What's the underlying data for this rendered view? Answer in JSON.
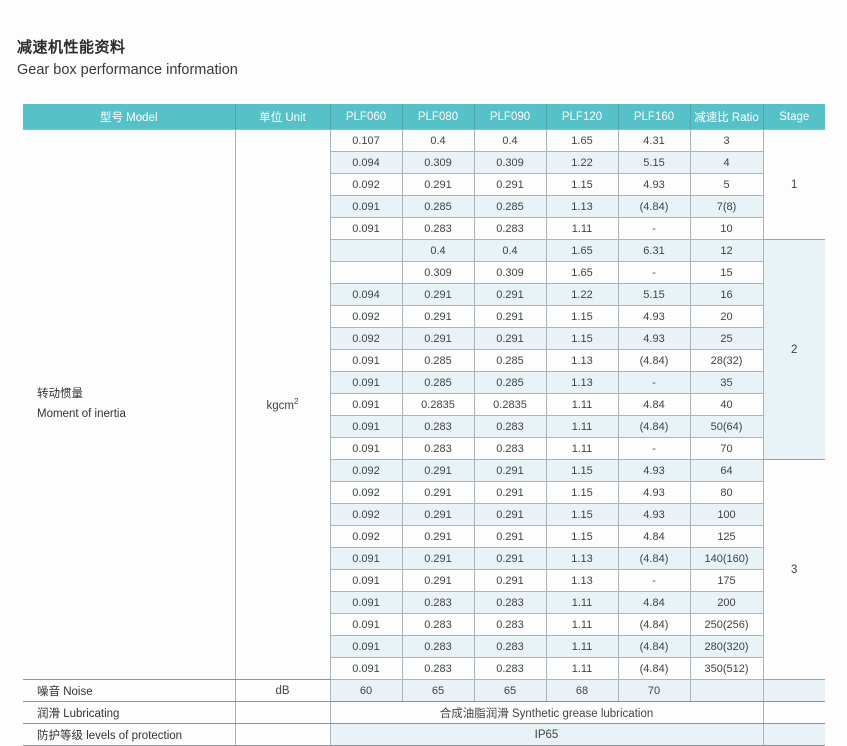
{
  "page": {
    "title_zh": "减速机性能资料",
    "title_en": "Gear box performance information"
  },
  "colors": {
    "header_bg": "#57c1c8",
    "header_text": "#ffffff",
    "stripe": "#e9f2f6",
    "border_light": "#aab4b9",
    "border_dark": "#8d9499"
  },
  "table": {
    "headers": [
      "型号 Model",
      "单位 Unit",
      "PLF060",
      "PLF080",
      "PLF090",
      "PLF120",
      "PLF160",
      "减速比 Ratio",
      "Stage"
    ],
    "row_label": {
      "zh": "转动惯量",
      "en": "Moment of inertia"
    },
    "unit": {
      "base": "kgcm",
      "sup": "2"
    },
    "stages": [
      {
        "stage": "1",
        "rows": [
          [
            "0.107",
            "0.4",
            "0.4",
            "1.65",
            "4.31",
            "3"
          ],
          [
            "0.094",
            "0.309",
            "0.309",
            "1.22",
            "5.15",
            "4"
          ],
          [
            "0.092",
            "0.291",
            "0.291",
            "1.15",
            "4.93",
            "5"
          ],
          [
            "0.091",
            "0.285",
            "0.285",
            "1.13",
            "(4.84)",
            "7(8)"
          ],
          [
            "0.091",
            "0.283",
            "0.283",
            "1.11",
            "-",
            "10"
          ]
        ]
      },
      {
        "stage": "2",
        "rows": [
          [
            "",
            "0.4",
            "0.4",
            "1.65",
            "6.31",
            "12"
          ],
          [
            "",
            "0.309",
            "0.309",
            "1.65",
            "-",
            "15"
          ],
          [
            "0.094",
            "0.291",
            "0.291",
            "1.22",
            "5.15",
            "16"
          ],
          [
            "0.092",
            "0.291",
            "0.291",
            "1.15",
            "4.93",
            "20"
          ],
          [
            "0.092",
            "0.291",
            "0.291",
            "1.15",
            "4.93",
            "25"
          ],
          [
            "0.091",
            "0.285",
            "0.285",
            "1.13",
            "(4.84)",
            "28(32)"
          ],
          [
            "0.091",
            "0.285",
            "0.285",
            "1.13",
            "-",
            "35"
          ],
          [
            "0.091",
            "0.2835",
            "0.2835",
            "1.11",
            "4.84",
            "40"
          ],
          [
            "0.091",
            "0.283",
            "0.283",
            "1.11",
            "(4.84)",
            "50(64)"
          ],
          [
            "0.091",
            "0.283",
            "0.283",
            "1.11",
            "-",
            "70"
          ]
        ]
      },
      {
        "stage": "3",
        "rows": [
          [
            "0.092",
            "0.291",
            "0.291",
            "1.15",
            "4.93",
            "64"
          ],
          [
            "0.092",
            "0.291",
            "0.291",
            "1.15",
            "4.93",
            "80"
          ],
          [
            "0.092",
            "0.291",
            "0.291",
            "1.15",
            "4.93",
            "100"
          ],
          [
            "0.092",
            "0.291",
            "0.291",
            "1.15",
            "4.84",
            "125"
          ],
          [
            "0.091",
            "0.291",
            "0.291",
            "1.13",
            "(4.84)",
            "140(160)"
          ],
          [
            "0.091",
            "0.291",
            "0.291",
            "1.13",
            "-",
            "175"
          ],
          [
            "0.091",
            "0.283",
            "0.283",
            "1.11",
            "4.84",
            "200"
          ],
          [
            "0.091",
            "0.283",
            "0.283",
            "1.11",
            "(4.84)",
            "250(256)"
          ],
          [
            "0.091",
            "0.283",
            "0.283",
            "1.11",
            "(4.84)",
            "280(320)"
          ],
          [
            "0.091",
            "0.283",
            "0.283",
            "1.11",
            "(4.84)",
            "350(512)"
          ]
        ]
      }
    ],
    "noise": {
      "label": "噪音 Noise",
      "unit": "dB",
      "values": [
        "60",
        "65",
        "65",
        "68",
        "70"
      ]
    },
    "lubricating": {
      "label": "润滑 Lubricating",
      "value": "合成油脂润滑 Synthetic grease lubrication"
    },
    "protection": {
      "label": "防护等级 levels of protection",
      "value": "IP65"
    }
  }
}
